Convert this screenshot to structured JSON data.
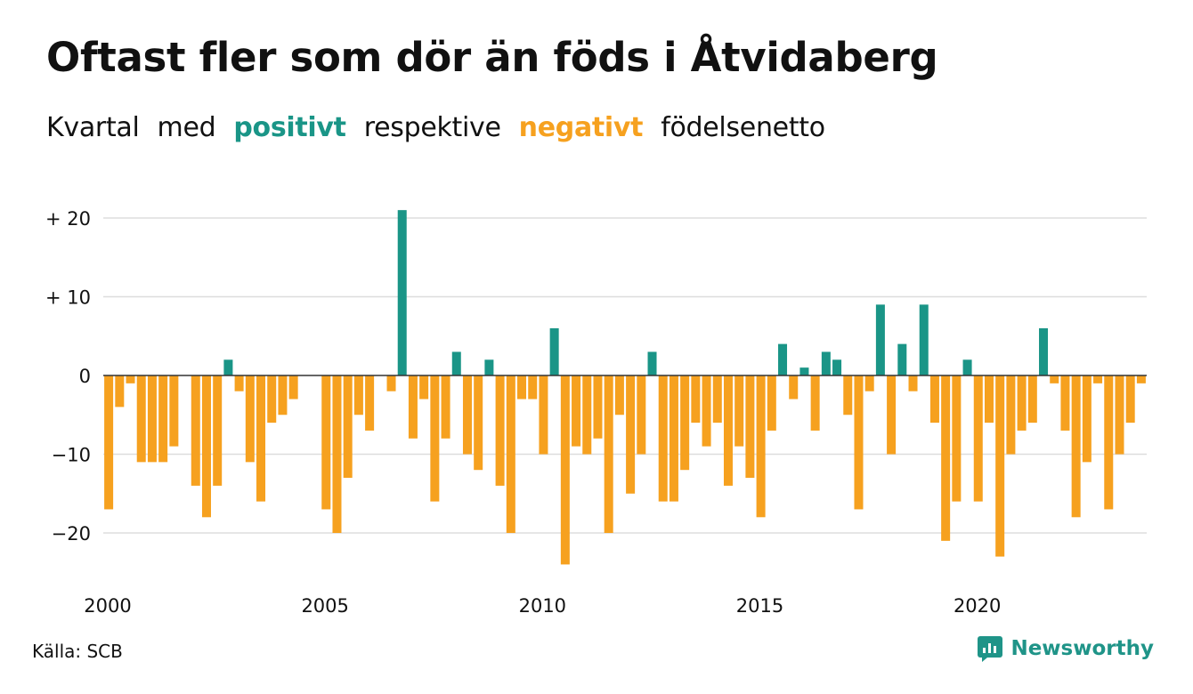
{
  "title": "Oftast fler som dör än föds i Åtvidaberg",
  "subtitle": {
    "w1": "Kvartal",
    "w2": "med",
    "positive_word": "positivt",
    "w3": "respektive",
    "negative_word": "negativt",
    "w4": "födelsenetto"
  },
  "source": "Källa: SCB",
  "brand": {
    "name": "Newsworthy",
    "color": "#1f9488",
    "icon": "newsworthy-logo-icon"
  },
  "colors": {
    "positive": "#1a9587",
    "negative": "#f6a11f",
    "grid": "#dddddd",
    "zero": "#333333"
  },
  "chart_data": {
    "type": "bar",
    "title": "Oftast fler som dör än föds i Åtvidaberg",
    "x_start": 2000,
    "x_step": 0.25,
    "xlim": [
      2000,
      2024
    ],
    "x_ticks": [
      2000,
      2005,
      2010,
      2015,
      2020
    ],
    "x_tick_labels": [
      "2000",
      "2005",
      "2010",
      "2015",
      "2020"
    ],
    "ylim": [
      -25,
      22
    ],
    "y_ticks": [
      20,
      10,
      0,
      -10,
      -20
    ],
    "y_tick_labels": [
      "+ 20",
      "+ 10",
      "0",
      "−10",
      "−20"
    ],
    "grid": true,
    "values": [
      -17,
      -4,
      -1,
      -11,
      -11,
      -11,
      -9,
      0,
      -14,
      -18,
      -14,
      2,
      -2,
      -11,
      -16,
      -6,
      -5,
      -3,
      0,
      0,
      -17,
      -20,
      -13,
      -5,
      -7,
      0,
      -2,
      21,
      -8,
      -3,
      -16,
      -8,
      3,
      -10,
      -12,
      2,
      -14,
      -20,
      -3,
      -3,
      -10,
      6,
      -24,
      -9,
      -10,
      -8,
      -20,
      -5,
      -15,
      -10,
      3,
      -16,
      -16,
      -12,
      -6,
      -9,
      -6,
      -14,
      -9,
      -13,
      -18,
      -7,
      4,
      -3,
      1,
      -7,
      3,
      2,
      -5,
      -17,
      -2,
      9,
      -10,
      4,
      -2,
      9,
      -6,
      -21,
      -16,
      2,
      -16,
      -6,
      -23,
      -10,
      -7,
      -6,
      6,
      -1,
      -7,
      -18,
      -11,
      -1,
      -17,
      -10,
      -6,
      -1
    ]
  }
}
